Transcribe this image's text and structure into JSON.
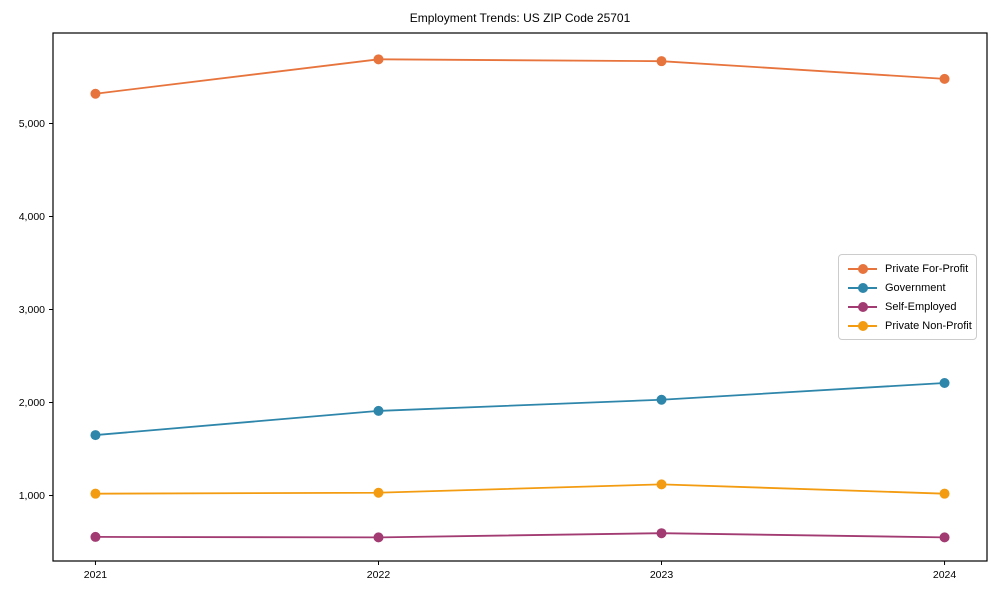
{
  "chart_data": {
    "type": "line",
    "title": "Employment Trends: US ZIP Code 25701",
    "xlabel": "",
    "ylabel": "",
    "x_labels": [
      "2021",
      "2022",
      "2023",
      "2024"
    ],
    "series": [
      {
        "name": "Private For-Profit",
        "color": "#E8743D",
        "values": [
          5320,
          5690,
          5670,
          5480
        ]
      },
      {
        "name": "Government",
        "color": "#2E86AB",
        "values": [
          1650,
          1910,
          2030,
          2210
        ]
      },
      {
        "name": "Self-Employed",
        "color": "#A23B72",
        "values": [
          555,
          550,
          595,
          550
        ]
      },
      {
        "name": "Private Non-Profit",
        "color": "#F39C12",
        "values": [
          1020,
          1030,
          1120,
          1020
        ]
      }
    ],
    "y_ticks": [
      1000,
      2000,
      3000,
      4000,
      5000
    ],
    "y_tick_labels": [
      "1,000",
      "2,000",
      "3,000",
      "4,000",
      "5,000"
    ],
    "ylim": [
      296,
      5973
    ],
    "grid": false,
    "legend_position": "center-right",
    "marker": "circle",
    "background_color": "#ffffff",
    "axis_color": "#000000"
  }
}
